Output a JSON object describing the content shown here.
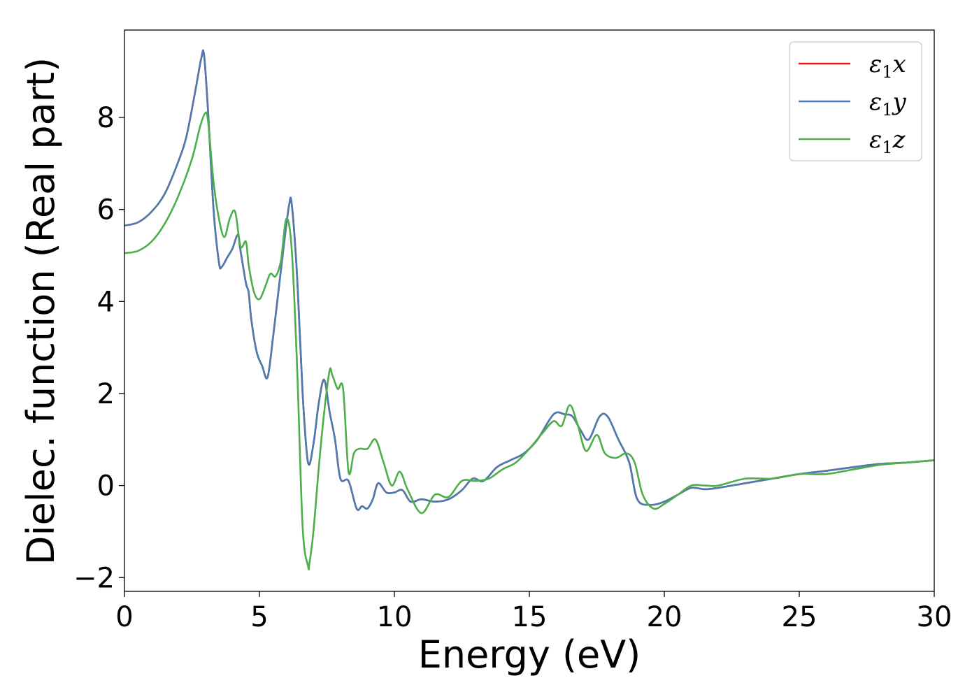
{
  "chart_data": {
    "type": "line",
    "title": "",
    "xlabel": "Energy (eV)",
    "ylabel": "Dielec. function (Real part)",
    "xlim": [
      0,
      30
    ],
    "ylim": [
      -2.3,
      9.9
    ],
    "xticks": [
      0,
      5,
      10,
      15,
      20,
      25,
      30
    ],
    "yticks": [
      -2,
      0,
      2,
      4,
      6,
      8
    ],
    "xtick_labels": [
      "0",
      "5",
      "10",
      "15",
      "20",
      "25",
      "30"
    ],
    "ytick_labels": [
      "−2",
      "0",
      "2",
      "4",
      "6",
      "8"
    ],
    "grid": false,
    "legend_position": "top-right",
    "series": [
      {
        "name": "ε1x",
        "legend_base": "ε",
        "legend_sub": "1",
        "legend_suffix": "x",
        "color": "#e41a1c",
        "x": [
          0,
          0.5,
          1,
          1.5,
          2,
          2.3,
          2.6,
          2.85,
          2.95,
          3.1,
          3.3,
          3.5,
          3.6,
          3.8,
          4.0,
          4.2,
          4.3,
          4.5,
          4.6,
          4.7,
          4.9,
          5.1,
          5.3,
          5.5,
          5.7,
          5.9,
          6.1,
          6.2,
          6.4,
          6.6,
          6.8,
          7.0,
          7.2,
          7.4,
          7.6,
          7.8,
          8.0,
          8.3,
          8.6,
          8.8,
          9.0,
          9.2,
          9.4,
          9.7,
          10.0,
          10.3,
          10.6,
          11.0,
          11.5,
          12.0,
          12.5,
          12.9,
          13.3,
          13.8,
          14.3,
          14.8,
          15.3,
          15.9,
          16.3,
          16.6,
          16.9,
          17.2,
          17.6,
          17.9,
          18.3,
          18.7,
          19.0,
          19.5,
          20.0,
          20.5,
          21.0,
          21.5,
          22.0,
          23.0,
          24.0,
          25.0,
          26.0,
          27.0,
          28.0,
          29.0,
          30.0
        ],
        "y": [
          5.65,
          5.72,
          5.95,
          6.35,
          7.05,
          7.6,
          8.5,
          9.3,
          9.35,
          8.1,
          6.0,
          4.85,
          4.75,
          4.95,
          5.15,
          5.45,
          5.1,
          4.4,
          4.2,
          3.6,
          2.9,
          2.6,
          2.35,
          3.2,
          4.2,
          5.2,
          6.1,
          6.1,
          4.5,
          2.0,
          0.5,
          0.9,
          1.8,
          2.3,
          1.6,
          1.0,
          0.15,
          0.1,
          -0.5,
          -0.45,
          -0.5,
          -0.3,
          0.05,
          -0.15,
          -0.15,
          -0.1,
          -0.35,
          -0.3,
          -0.35,
          -0.3,
          -0.1,
          0.15,
          0.1,
          0.4,
          0.55,
          0.7,
          1.0,
          1.55,
          1.55,
          1.5,
          1.2,
          1.0,
          1.5,
          1.5,
          1.0,
          0.5,
          -0.3,
          -0.42,
          -0.35,
          -0.2,
          -0.05,
          -0.08,
          -0.05,
          0.05,
          0.15,
          0.25,
          0.32,
          0.4,
          0.47,
          0.5,
          0.55
        ]
      },
      {
        "name": "ε1y",
        "legend_base": "ε",
        "legend_sub": "1",
        "legend_suffix": "y",
        "color": "#4a7cb1",
        "x": [
          0,
          0.5,
          1,
          1.5,
          2,
          2.3,
          2.6,
          2.85,
          2.95,
          3.1,
          3.3,
          3.5,
          3.6,
          3.8,
          4.0,
          4.2,
          4.3,
          4.5,
          4.6,
          4.7,
          4.9,
          5.1,
          5.3,
          5.5,
          5.7,
          5.9,
          6.1,
          6.2,
          6.4,
          6.6,
          6.8,
          7.0,
          7.2,
          7.4,
          7.6,
          7.8,
          8.0,
          8.3,
          8.6,
          8.8,
          9.0,
          9.2,
          9.4,
          9.7,
          10.0,
          10.3,
          10.6,
          11.0,
          11.5,
          12.0,
          12.5,
          12.9,
          13.3,
          13.8,
          14.3,
          14.8,
          15.3,
          15.9,
          16.3,
          16.6,
          16.9,
          17.2,
          17.6,
          17.9,
          18.3,
          18.7,
          19.0,
          19.5,
          20.0,
          20.5,
          21.0,
          21.5,
          22.0,
          23.0,
          24.0,
          25.0,
          26.0,
          27.0,
          28.0,
          29.0,
          30.0
        ],
        "y": [
          5.65,
          5.72,
          5.95,
          6.35,
          7.05,
          7.6,
          8.5,
          9.3,
          9.35,
          8.1,
          6.0,
          4.85,
          4.75,
          4.95,
          5.15,
          5.45,
          5.1,
          4.4,
          4.2,
          3.6,
          2.9,
          2.6,
          2.35,
          3.2,
          4.2,
          5.2,
          6.1,
          6.1,
          4.5,
          2.0,
          0.5,
          0.9,
          1.8,
          2.3,
          1.6,
          1.0,
          0.15,
          0.1,
          -0.5,
          -0.45,
          -0.5,
          -0.3,
          0.05,
          -0.15,
          -0.15,
          -0.1,
          -0.35,
          -0.3,
          -0.35,
          -0.3,
          -0.1,
          0.15,
          0.1,
          0.4,
          0.55,
          0.7,
          1.0,
          1.55,
          1.55,
          1.5,
          1.2,
          1.0,
          1.5,
          1.5,
          1.0,
          0.5,
          -0.3,
          -0.42,
          -0.35,
          -0.2,
          -0.05,
          -0.08,
          -0.05,
          0.05,
          0.15,
          0.25,
          0.32,
          0.4,
          0.47,
          0.5,
          0.55
        ]
      },
      {
        "name": "ε1z",
        "legend_base": "ε",
        "legend_sub": "1",
        "legend_suffix": "z",
        "color": "#4daf4a",
        "x": [
          0,
          0.5,
          1,
          1.5,
          2,
          2.5,
          2.8,
          3.0,
          3.1,
          3.3,
          3.5,
          3.7,
          3.9,
          4.1,
          4.3,
          4.5,
          4.6,
          4.8,
          5.0,
          5.2,
          5.4,
          5.6,
          5.8,
          6.0,
          6.2,
          6.4,
          6.6,
          6.8,
          6.85,
          7.0,
          7.2,
          7.4,
          7.6,
          7.7,
          7.9,
          8.1,
          8.3,
          8.5,
          8.7,
          9.0,
          9.3,
          9.6,
          9.9,
          10.2,
          10.5,
          11.0,
          11.5,
          12.0,
          12.5,
          13.0,
          13.5,
          14.0,
          14.5,
          15.0,
          15.5,
          15.9,
          16.2,
          16.5,
          16.8,
          17.1,
          17.5,
          17.8,
          18.2,
          18.6,
          18.9,
          19.2,
          19.6,
          20.0,
          20.5,
          21.0,
          21.5,
          22.0,
          23.0,
          24.0,
          25.0,
          26.0,
          27.0,
          28.0,
          29.0,
          30.0
        ],
        "y": [
          5.05,
          5.1,
          5.3,
          5.7,
          6.3,
          7.1,
          7.8,
          8.1,
          7.9,
          6.6,
          5.8,
          5.4,
          5.8,
          5.95,
          5.2,
          5.3,
          4.8,
          4.2,
          4.05,
          4.3,
          4.6,
          4.55,
          4.9,
          5.8,
          5.1,
          2.5,
          -0.9,
          -1.75,
          -1.7,
          -1.0,
          0.4,
          1.6,
          2.5,
          2.4,
          2.1,
          2.1,
          0.3,
          0.7,
          0.8,
          0.8,
          1.0,
          0.5,
          0.0,
          0.3,
          -0.1,
          -0.6,
          -0.2,
          -0.25,
          0.1,
          0.1,
          0.15,
          0.35,
          0.5,
          0.8,
          1.15,
          1.4,
          1.3,
          1.75,
          1.3,
          0.75,
          1.1,
          0.7,
          0.6,
          0.7,
          0.5,
          -0.2,
          -0.5,
          -0.4,
          -0.2,
          0.0,
          0.0,
          0.0,
          0.15,
          0.15,
          0.25,
          0.25,
          0.35,
          0.45,
          0.5,
          0.55
        ]
      }
    ]
  }
}
